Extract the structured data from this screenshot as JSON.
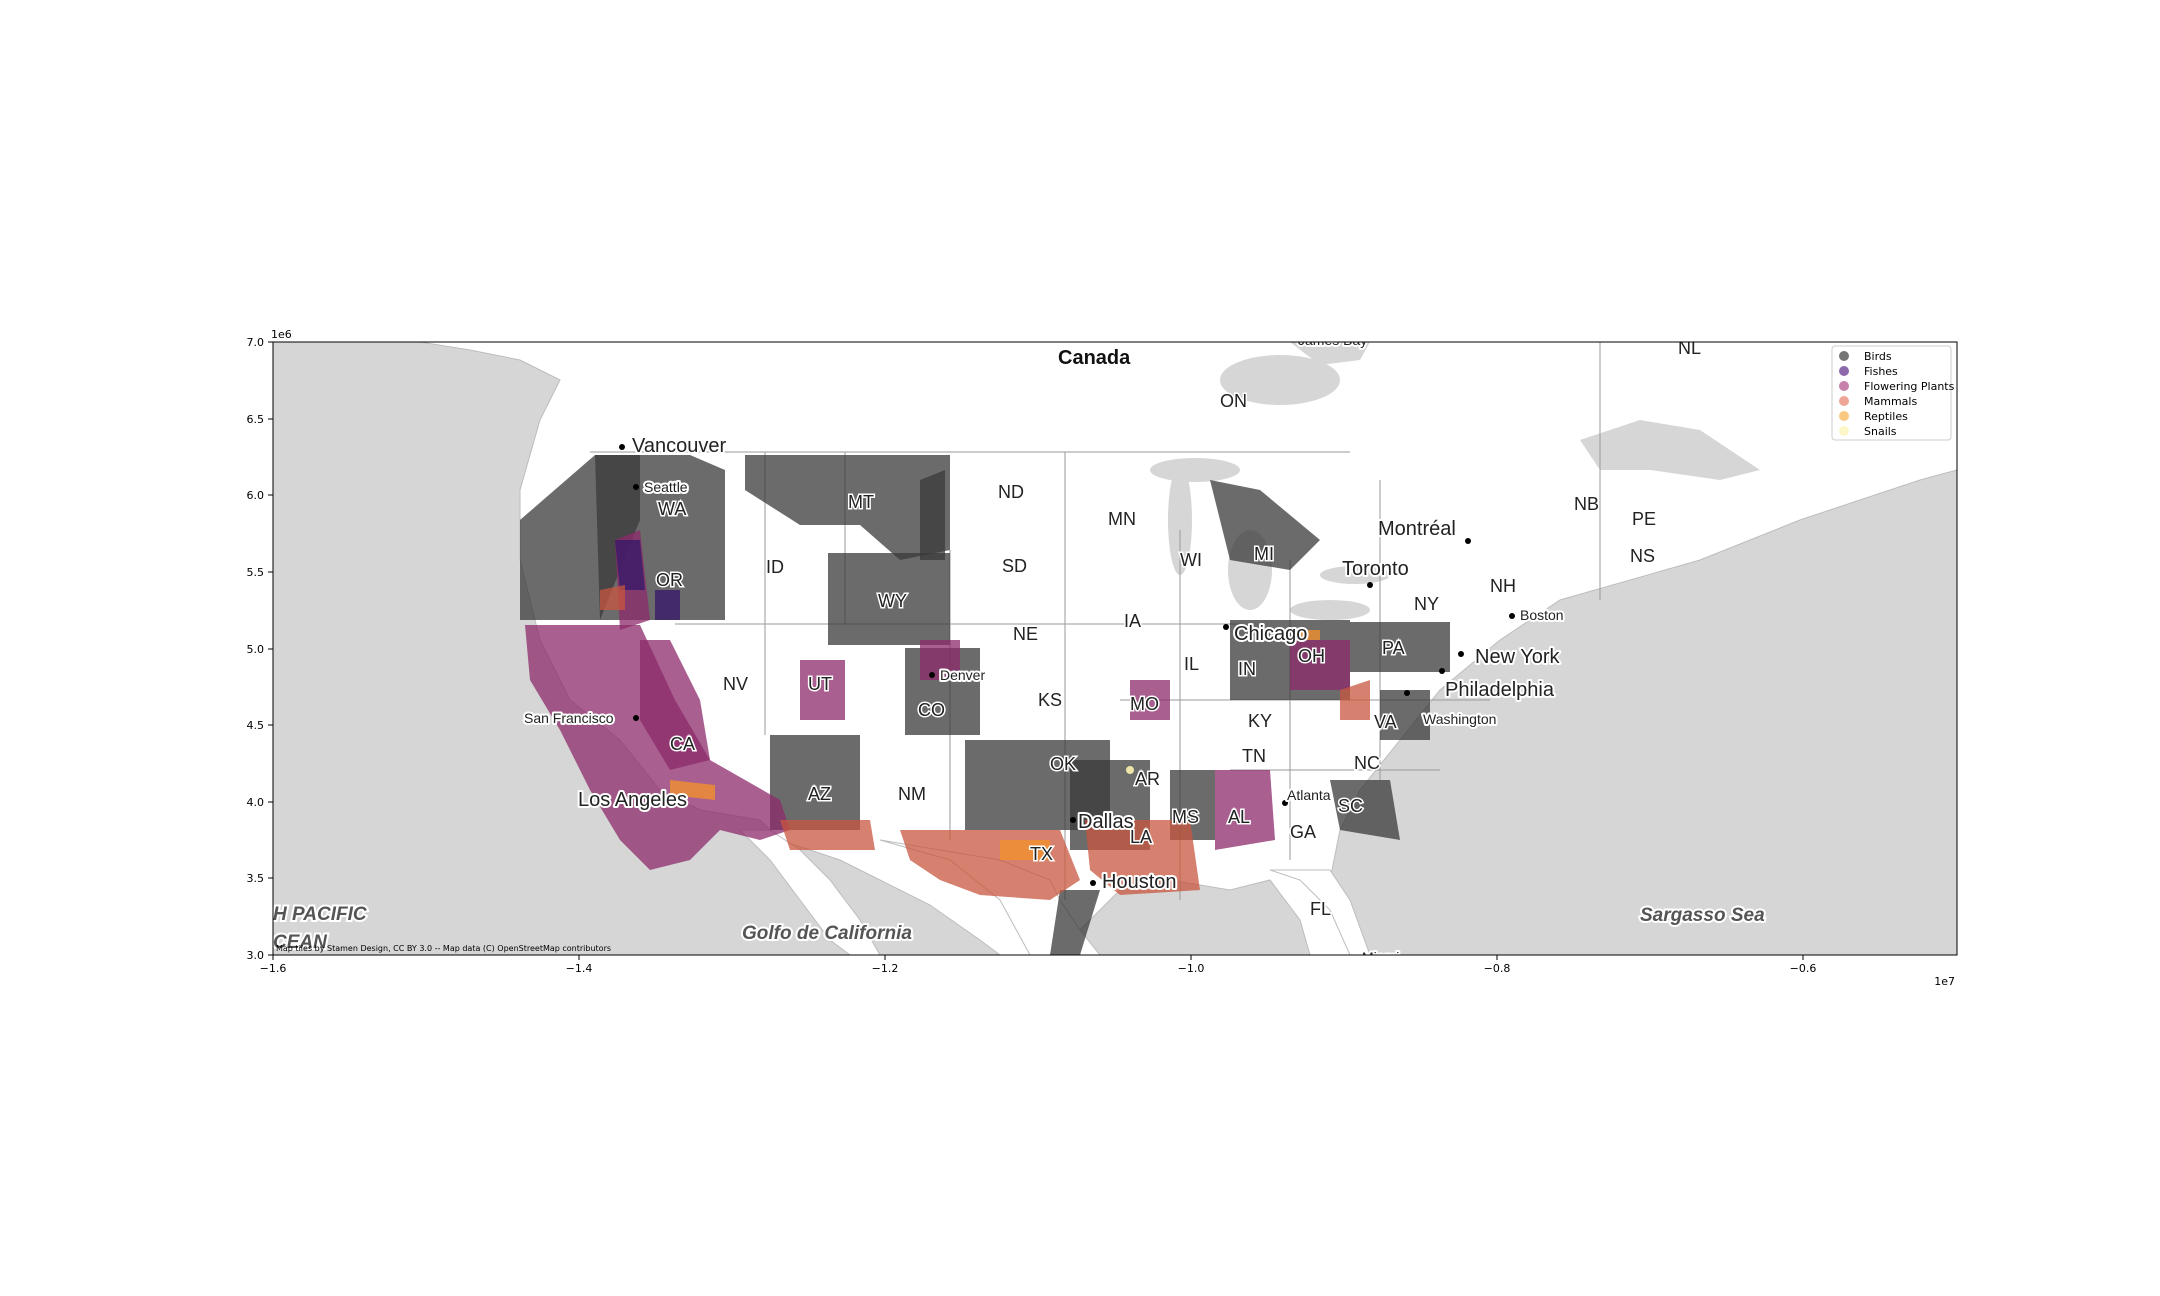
{
  "map": {
    "x_ticks": [
      "−1.6",
      "−1.4",
      "−1.2",
      "−1.0",
      "−0.8",
      "−0.6"
    ],
    "y_ticks": [
      "3.0",
      "3.5",
      "4.0",
      "4.5",
      "5.0",
      "5.5",
      "6.0",
      "6.5",
      "7.0"
    ],
    "x_exponent": "1e7",
    "y_exponent": "1e6",
    "attribution": "Map tiles by Stamen Design, CC BY 3.0 -- Map data (C) OpenStreetMap contributors",
    "country": "Canada",
    "seas": [
      "H PACIFIC",
      "CEAN",
      "Golfo de California",
      "Sargasso Sea"
    ],
    "cities": [
      "Vancouver",
      "Seattle",
      "San Francisco",
      "Los Angeles",
      "Denver",
      "Dallas",
      "Houston",
      "Chicago",
      "Atlanta",
      "Toronto",
      "Montréal",
      "Boston",
      "New York",
      "Philadelphia",
      "Washington",
      "Miami"
    ],
    "states": [
      "WA",
      "OR",
      "CA",
      "ID",
      "NV",
      "UT",
      "AZ",
      "MT",
      "WY",
      "CO",
      "NM",
      "ND",
      "SD",
      "NE",
      "KS",
      "OK",
      "TX",
      "MN",
      "IA",
      "MO",
      "AR",
      "LA",
      "WI",
      "IL",
      "MS",
      "AL",
      "MI",
      "IN",
      "OH",
      "KY",
      "TN",
      "GA",
      "FL",
      "SC",
      "NC",
      "VA",
      "PA",
      "NY",
      "NH",
      "ON",
      "NB",
      "PE",
      "NS",
      "NL"
    ],
    "partial_top": "James Bay",
    "legend": [
      {
        "label": "Birds",
        "color": "#3a3a3a"
      },
      {
        "label": "Fishes",
        "color": "#5b2a86"
      },
      {
        "label": "Flowering Plants",
        "color": "#b04a8a"
      },
      {
        "label": "Mammals",
        "color": "#e8806a"
      },
      {
        "label": "Reptiles",
        "color": "#f5b04a"
      },
      {
        "label": "Snails",
        "color": "#fcf3b0"
      }
    ]
  }
}
